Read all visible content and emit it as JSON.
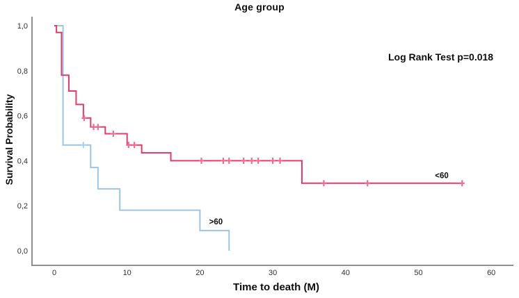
{
  "page": {
    "background": "#ffffff",
    "axis_color": "#8f8f8f"
  },
  "chart_data": {
    "type": "line",
    "variant": "kaplan_meier_step",
    "title": "Age group",
    "xlabel": "Time to death (M)",
    "ylabel": "Survival Probability",
    "annotation": "Log Rank Test p=0.018",
    "xlim": [
      0,
      60
    ],
    "ylim": [
      0.0,
      1.0
    ],
    "grid": false,
    "legend_position": "inline-curve-labels",
    "x_ticks": [
      {
        "value": 0,
        "label": "0"
      },
      {
        "value": 10,
        "label": "10"
      },
      {
        "value": 20,
        "label": "20"
      },
      {
        "value": 30,
        "label": "30"
      },
      {
        "value": 40,
        "label": "40"
      },
      {
        "value": 50,
        "label": "50"
      },
      {
        "value": 60,
        "label": "60"
      }
    ],
    "y_ticks": [
      {
        "value": 0.0,
        "label": "0,0"
      },
      {
        "value": 0.2,
        "label": "0,2"
      },
      {
        "value": 0.4,
        "label": "0,4"
      },
      {
        "value": 0.6,
        "label": "0,6"
      },
      {
        "value": 0.8,
        "label": "0,8"
      },
      {
        "value": 1.0,
        "label": "1,0"
      }
    ],
    "series": [
      {
        "name": ">60",
        "color": "#9cc5e3",
        "censor_color": "#aed4eb",
        "label": {
          "text": ">60",
          "t": 22.2,
          "p": 0.13
        },
        "steps": [
          [
            0,
            1.0
          ],
          [
            1.2,
            0.47
          ],
          [
            5,
            0.37
          ],
          [
            6,
            0.275
          ],
          [
            9,
            0.18
          ],
          [
            20,
            0.09
          ],
          [
            24,
            0.0
          ]
        ],
        "censors": [
          [
            4,
            0.47
          ]
        ]
      },
      {
        "name": "<60",
        "color": "#e83a68",
        "censor_color": "#ee6d95",
        "label": {
          "text": "<60",
          "t": 53.2,
          "p": 0.335
        },
        "steps": [
          [
            0,
            1.0
          ],
          [
            0.3,
            0.97
          ],
          [
            1,
            0.78
          ],
          [
            2,
            0.71
          ],
          [
            3,
            0.65
          ],
          [
            4,
            0.59
          ],
          [
            5,
            0.55
          ],
          [
            7,
            0.52
          ],
          [
            10,
            0.47
          ],
          [
            12,
            0.435
          ],
          [
            16,
            0.4
          ],
          [
            34,
            0.3
          ],
          [
            56,
            0.3
          ]
        ],
        "censors": [
          [
            4.1,
            0.59
          ],
          [
            5.4,
            0.55
          ],
          [
            6,
            0.55
          ],
          [
            8.1,
            0.52
          ],
          [
            10.2,
            0.47
          ],
          [
            11,
            0.47
          ],
          [
            20.2,
            0.4
          ],
          [
            23.2,
            0.4
          ],
          [
            24,
            0.4
          ],
          [
            26,
            0.4
          ],
          [
            27.1,
            0.4
          ],
          [
            28,
            0.4
          ],
          [
            30,
            0.4
          ],
          [
            31,
            0.4
          ],
          [
            37,
            0.3
          ],
          [
            43,
            0.3
          ],
          [
            56,
            0.3
          ]
        ]
      }
    ]
  }
}
